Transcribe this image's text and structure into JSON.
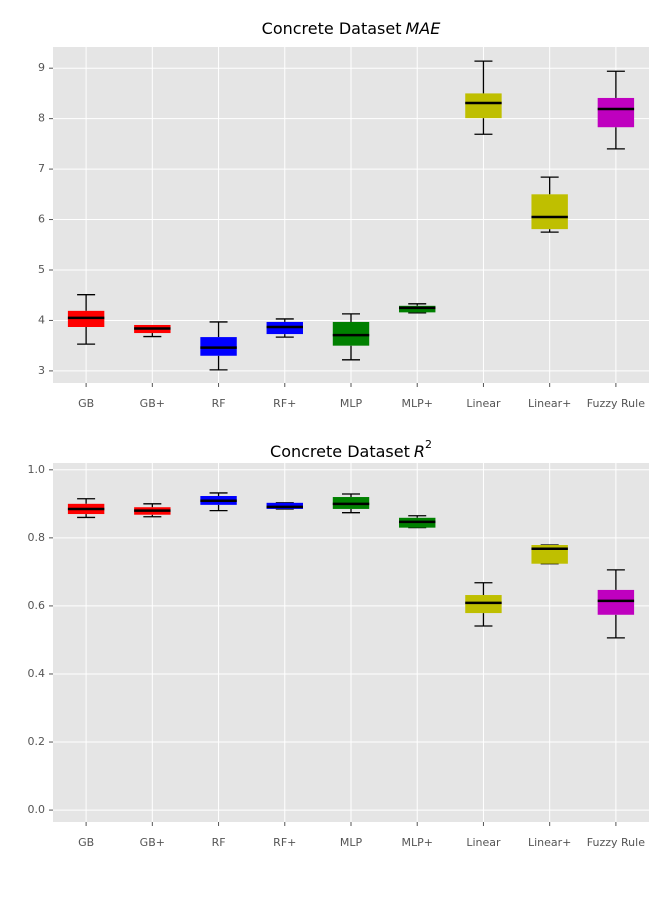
{
  "chart_data": [
    {
      "type": "box",
      "title": "Concrete Dataset",
      "title_math": "MAE",
      "categories": [
        "GB",
        "GB+",
        "RF",
        "RF+",
        "MLP",
        "MLP+",
        "Linear",
        "Linear+",
        "Fuzzy Rule"
      ],
      "colors": [
        "#ff0000",
        "#ff0000",
        "#0000ff",
        "#0000ff",
        "#008000",
        "#008000",
        "#bfbf00",
        "#bfbf00",
        "#bf00bf"
      ],
      "low": [
        3.53,
        3.68,
        3.02,
        3.67,
        3.22,
        4.15,
        7.69,
        5.75,
        7.4
      ],
      "q1": [
        3.87,
        3.75,
        3.3,
        3.73,
        3.5,
        4.16,
        8.01,
        5.81,
        7.83
      ],
      "median": [
        4.05,
        3.84,
        3.46,
        3.87,
        3.71,
        4.25,
        8.31,
        6.05,
        8.19
      ],
      "q3": [
        4.19,
        3.91,
        3.67,
        3.97,
        3.97,
        4.29,
        8.5,
        6.5,
        8.41
      ],
      "high": [
        4.51,
        3.89,
        3.97,
        4.03,
        4.13,
        4.33,
        9.14,
        6.84,
        8.94
      ],
      "ylim": [
        2.76,
        9.42
      ],
      "yticks": [
        3,
        4,
        5,
        6,
        7,
        8,
        9
      ],
      "grid": true
    },
    {
      "type": "box",
      "title": "Concrete Dataset",
      "title_math": "R",
      "title_sup": "2",
      "categories": [
        "GB",
        "GB+",
        "RF",
        "RF+",
        "MLP",
        "MLP+",
        "Linear",
        "Linear+",
        "Fuzzy Rule"
      ],
      "colors": [
        "#ff0000",
        "#ff0000",
        "#0000ff",
        "#0000ff",
        "#008000",
        "#008000",
        "#bfbf00",
        "#bfbf00",
        "#bf00bf"
      ],
      "low": [
        0.86,
        0.862,
        0.88,
        0.885,
        0.874,
        0.83,
        0.541,
        0.724,
        0.506
      ],
      "q1": [
        0.87,
        0.868,
        0.897,
        0.885,
        0.885,
        0.83,
        0.579,
        0.724,
        0.574
      ],
      "median": [
        0.885,
        0.88,
        0.909,
        0.891,
        0.9,
        0.847,
        0.609,
        0.768,
        0.615
      ],
      "q3": [
        0.9,
        0.89,
        0.923,
        0.903,
        0.92,
        0.859,
        0.632,
        0.779,
        0.647
      ],
      "high": [
        0.915,
        0.9,
        0.932,
        0.903,
        0.929,
        0.865,
        0.668,
        0.779,
        0.706
      ],
      "ylim": [
        -0.035,
        1.02
      ],
      "yticks": [
        {
          "value": 0,
          "label": "0.0"
        },
        0.2,
        0.4,
        0.6,
        0.8,
        {
          "value": 1,
          "label": "1.0"
        }
      ],
      "grid": true
    }
  ]
}
